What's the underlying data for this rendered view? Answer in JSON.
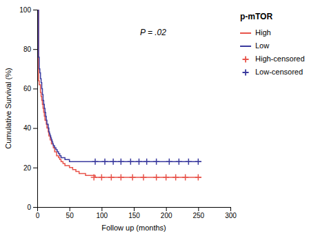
{
  "chart_data": {
    "type": "step",
    "title": "p-mTOR",
    "x_label": "Follow up (months)",
    "y_label": "Cumulative Survival (%)",
    "annotation": "P = .02",
    "xlim": [
      0,
      300
    ],
    "ylim": [
      0,
      100
    ],
    "xticks": [
      0,
      50,
      100,
      150,
      200,
      250,
      300
    ],
    "yticks": [
      0,
      20,
      40,
      60,
      80,
      100
    ],
    "grid": false,
    "legend": "right",
    "series": [
      {
        "name": "High",
        "type": "step",
        "color": "#e8534a",
        "x": [
          0,
          2,
          3,
          5,
          6,
          7,
          8,
          9,
          10,
          11,
          12,
          14,
          15,
          17,
          18,
          20,
          22,
          25,
          27,
          30,
          33,
          35,
          37,
          40,
          43,
          47,
          50,
          55,
          60,
          65,
          70,
          75,
          80,
          85,
          90,
          95,
          100,
          110,
          120,
          130,
          140,
          150,
          160,
          170,
          180,
          190,
          200,
          210,
          220,
          230,
          240,
          250,
          255
        ],
        "values": [
          100,
          64,
          62,
          58,
          56,
          54,
          52,
          50,
          48,
          46,
          44,
          42,
          40,
          38,
          36,
          34,
          32,
          30,
          28,
          26,
          25,
          24,
          23,
          22,
          21,
          21,
          20,
          19,
          18,
          17,
          17,
          16,
          16,
          16,
          15,
          15,
          15,
          15,
          15,
          15,
          15,
          15,
          15,
          15,
          15,
          15,
          15,
          15,
          15,
          15,
          15,
          15,
          15
        ]
      },
      {
        "name": "Low",
        "type": "step",
        "color": "#3a3a9e",
        "x": [
          0,
          1,
          2,
          3,
          4,
          5,
          6,
          7,
          8,
          9,
          10,
          11,
          12,
          13,
          14,
          15,
          17,
          18,
          19,
          20,
          21,
          22,
          23,
          24,
          25,
          27,
          29,
          31,
          33,
          35,
          37,
          40,
          43,
          46,
          50,
          55,
          60,
          65,
          70,
          75,
          80,
          85,
          90,
          100,
          110,
          120,
          130,
          140,
          150,
          160,
          170,
          180,
          190,
          200,
          210,
          220,
          230,
          240,
          250,
          255
        ],
        "values": [
          100,
          100,
          76,
          70,
          68,
          65,
          63,
          60,
          57,
          54,
          52,
          50,
          48,
          46,
          44,
          42,
          40,
          38,
          37,
          36,
          35,
          34,
          33,
          32,
          31,
          30,
          29,
          28,
          27,
          26,
          25,
          25,
          24,
          24,
          23,
          23,
          23,
          23,
          23,
          23,
          23,
          23,
          23,
          23,
          23,
          23,
          23,
          23,
          23,
          23,
          23,
          23,
          23,
          23,
          23,
          23,
          23,
          23,
          23,
          23
        ]
      },
      {
        "name": "High-censored",
        "type": "scatter",
        "marker": "plus",
        "color": "#e8534a",
        "x": [
          88,
          100,
          115,
          130,
          148,
          165,
          185,
          200,
          215,
          230,
          250
        ],
        "values": [
          15,
          15,
          15,
          15,
          15,
          15,
          15,
          15,
          15,
          15,
          15
        ]
      },
      {
        "name": "Low-censored",
        "type": "scatter",
        "marker": "plus",
        "color": "#3a3a9e",
        "x": [
          90,
          105,
          118,
          130,
          145,
          158,
          170,
          185,
          205,
          220,
          235,
          250
        ],
        "values": [
          23,
          23,
          23,
          23,
          23,
          23,
          23,
          23,
          23,
          23,
          23,
          23
        ]
      }
    ]
  }
}
